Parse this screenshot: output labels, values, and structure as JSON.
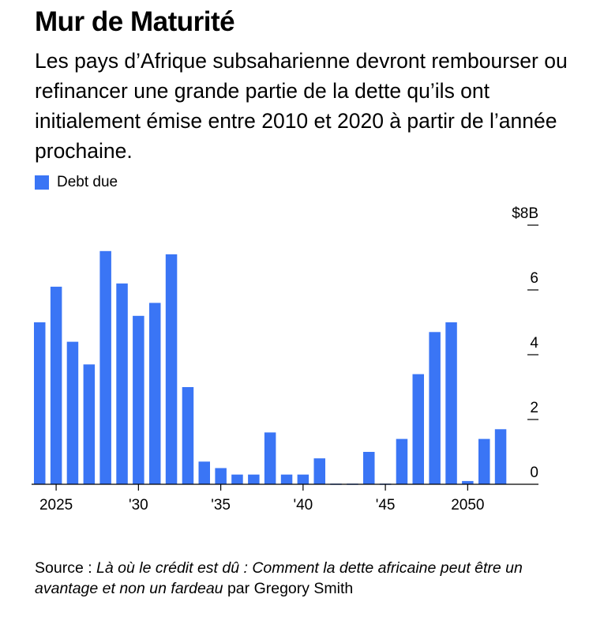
{
  "header": {
    "title": "Mur de Maturité",
    "subtitle": "Les pays d’Afrique subsaharienne devront rembourser ou refinancer une grande partie de la dette qu’ils ont initialement émise entre 2010 et 2020 à partir de l’année prochaine."
  },
  "footer": {
    "source_prefix": "Source : ",
    "source_italic": "Là où le crédit est dû : Comment la dette africaine peut être un avantage et non un fardeau",
    "source_suffix": " par Gregory Smith"
  },
  "colors": {
    "bar": "#3A75F5",
    "axis": "#000000"
  },
  "chart_data": {
    "type": "bar",
    "title": "Mur de Maturité",
    "xlabel": "",
    "ylabel": "",
    "legend": [
      "Debt due"
    ],
    "legend_position": "top-left",
    "y_axis_side": "right",
    "ylim": [
      0,
      8
    ],
    "y_ticks": [
      0,
      2,
      4,
      6,
      8
    ],
    "y_tick_labels": [
      "0",
      "2",
      "4",
      "6",
      "$8B"
    ],
    "categories": [
      2024,
      2025,
      2026,
      2027,
      2028,
      2029,
      2030,
      2031,
      2032,
      2033,
      2034,
      2035,
      2036,
      2037,
      2038,
      2039,
      2040,
      2041,
      2042,
      2043,
      2044,
      2045,
      2046,
      2047,
      2048,
      2049,
      2050,
      2051,
      2052
    ],
    "x_ticks": [
      2025,
      2030,
      2035,
      2040,
      2045,
      2050
    ],
    "x_tick_labels": [
      "2025",
      "'30",
      "'35",
      "'40",
      "'45",
      "2050"
    ],
    "series": [
      {
        "name": "Debt due",
        "values": [
          5.0,
          6.1,
          4.4,
          3.7,
          7.2,
          6.2,
          5.2,
          5.6,
          7.1,
          3.0,
          0.7,
          0.5,
          0.3,
          0.3,
          1.6,
          0.3,
          0.3,
          0.8,
          0.02,
          0.02,
          1.0,
          0.02,
          1.4,
          3.4,
          4.7,
          5.0,
          0.1,
          1.4,
          1.7
        ]
      }
    ]
  }
}
